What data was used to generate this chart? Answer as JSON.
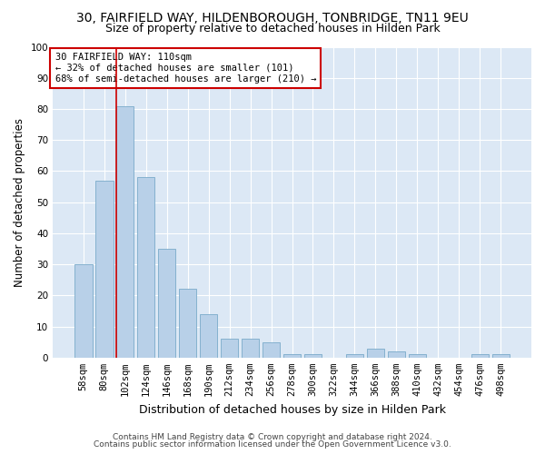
{
  "title": "30, FAIRFIELD WAY, HILDENBOROUGH, TONBRIDGE, TN11 9EU",
  "subtitle": "Size of property relative to detached houses in Hilden Park",
  "xlabel": "Distribution of detached houses by size in Hilden Park",
  "ylabel": "Number of detached properties",
  "categories": [
    "58sqm",
    "80sqm",
    "102sqm",
    "124sqm",
    "146sqm",
    "168sqm",
    "190sqm",
    "212sqm",
    "234sqm",
    "256sqm",
    "278sqm",
    "300sqm",
    "322sqm",
    "344sqm",
    "366sqm",
    "388sqm",
    "410sqm",
    "432sqm",
    "454sqm",
    "476sqm",
    "498sqm"
  ],
  "values": [
    30,
    57,
    81,
    58,
    35,
    22,
    14,
    6,
    6,
    5,
    1,
    1,
    0,
    1,
    3,
    2,
    1,
    0,
    0,
    1,
    1
  ],
  "bar_color": "#b8d0e8",
  "bar_edge_color": "#7aaaca",
  "highlight_index": 2,
  "highlight_line_color": "#cc0000",
  "annotation_line1": "30 FAIRFIELD WAY: 110sqm",
  "annotation_line2": "← 32% of detached houses are smaller (101)",
  "annotation_line3": "68% of semi-detached houses are larger (210) →",
  "annotation_box_color": "#ffffff",
  "annotation_box_edge": "#cc0000",
  "ylim": [
    0,
    100
  ],
  "yticks": [
    0,
    10,
    20,
    30,
    40,
    50,
    60,
    70,
    80,
    90,
    100
  ],
  "footer1": "Contains HM Land Registry data © Crown copyright and database right 2024.",
  "footer2": "Contains public sector information licensed under the Open Government Licence v3.0.",
  "plot_bg_color": "#dce8f5",
  "title_fontsize": 10,
  "subtitle_fontsize": 9,
  "tick_fontsize": 7.5,
  "ylabel_fontsize": 8.5,
  "xlabel_fontsize": 9,
  "footer_fontsize": 6.5
}
